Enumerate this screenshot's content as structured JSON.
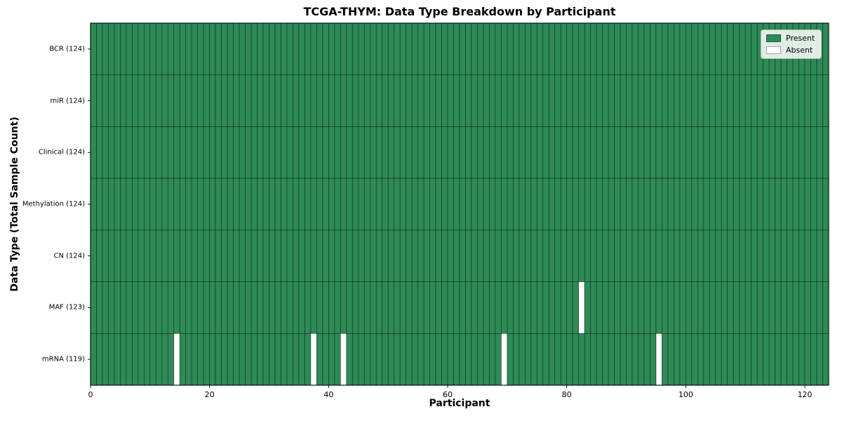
{
  "chart_data": {
    "type": "heatmap",
    "title": "TCGA-THYM: Data Type Breakdown by Participant",
    "xlabel": "Participant",
    "ylabel": "Data Type (Total Sample Count)",
    "n_participants": 124,
    "xlim": [
      0,
      124
    ],
    "x_ticks": [
      0,
      20,
      40,
      60,
      80,
      100,
      120
    ],
    "grid": false,
    "legend_position": "upper right",
    "legend": [
      {
        "label": "Present",
        "color": "#2e8b57"
      },
      {
        "label": "Absent",
        "color": "#ffffff"
      }
    ],
    "colors": {
      "present": "#2e8b57",
      "absent": "#ffffff",
      "cell_edge": "rgba(0,0,0,0.55)",
      "spine": "#000000"
    },
    "rows": [
      {
        "label": "BCR (124)",
        "data_type": "BCR",
        "present_count": 124,
        "absent_participants": []
      },
      {
        "label": "miR (124)",
        "data_type": "miR",
        "present_count": 124,
        "absent_participants": []
      },
      {
        "label": "Clinical (124)",
        "data_type": "Clinical",
        "present_count": 124,
        "absent_participants": []
      },
      {
        "label": "Methylation (124)",
        "data_type": "Methylation",
        "present_count": 124,
        "absent_participants": []
      },
      {
        "label": "CN (124)",
        "data_type": "CN",
        "present_count": 124,
        "absent_participants": []
      },
      {
        "label": "MAF (123)",
        "data_type": "MAF",
        "present_count": 123,
        "absent_participants": [
          82
        ]
      },
      {
        "label": "mRNA (119)",
        "data_type": "mRNA",
        "present_count": 119,
        "absent_participants": [
          14,
          37,
          42,
          69,
          95
        ]
      }
    ]
  }
}
